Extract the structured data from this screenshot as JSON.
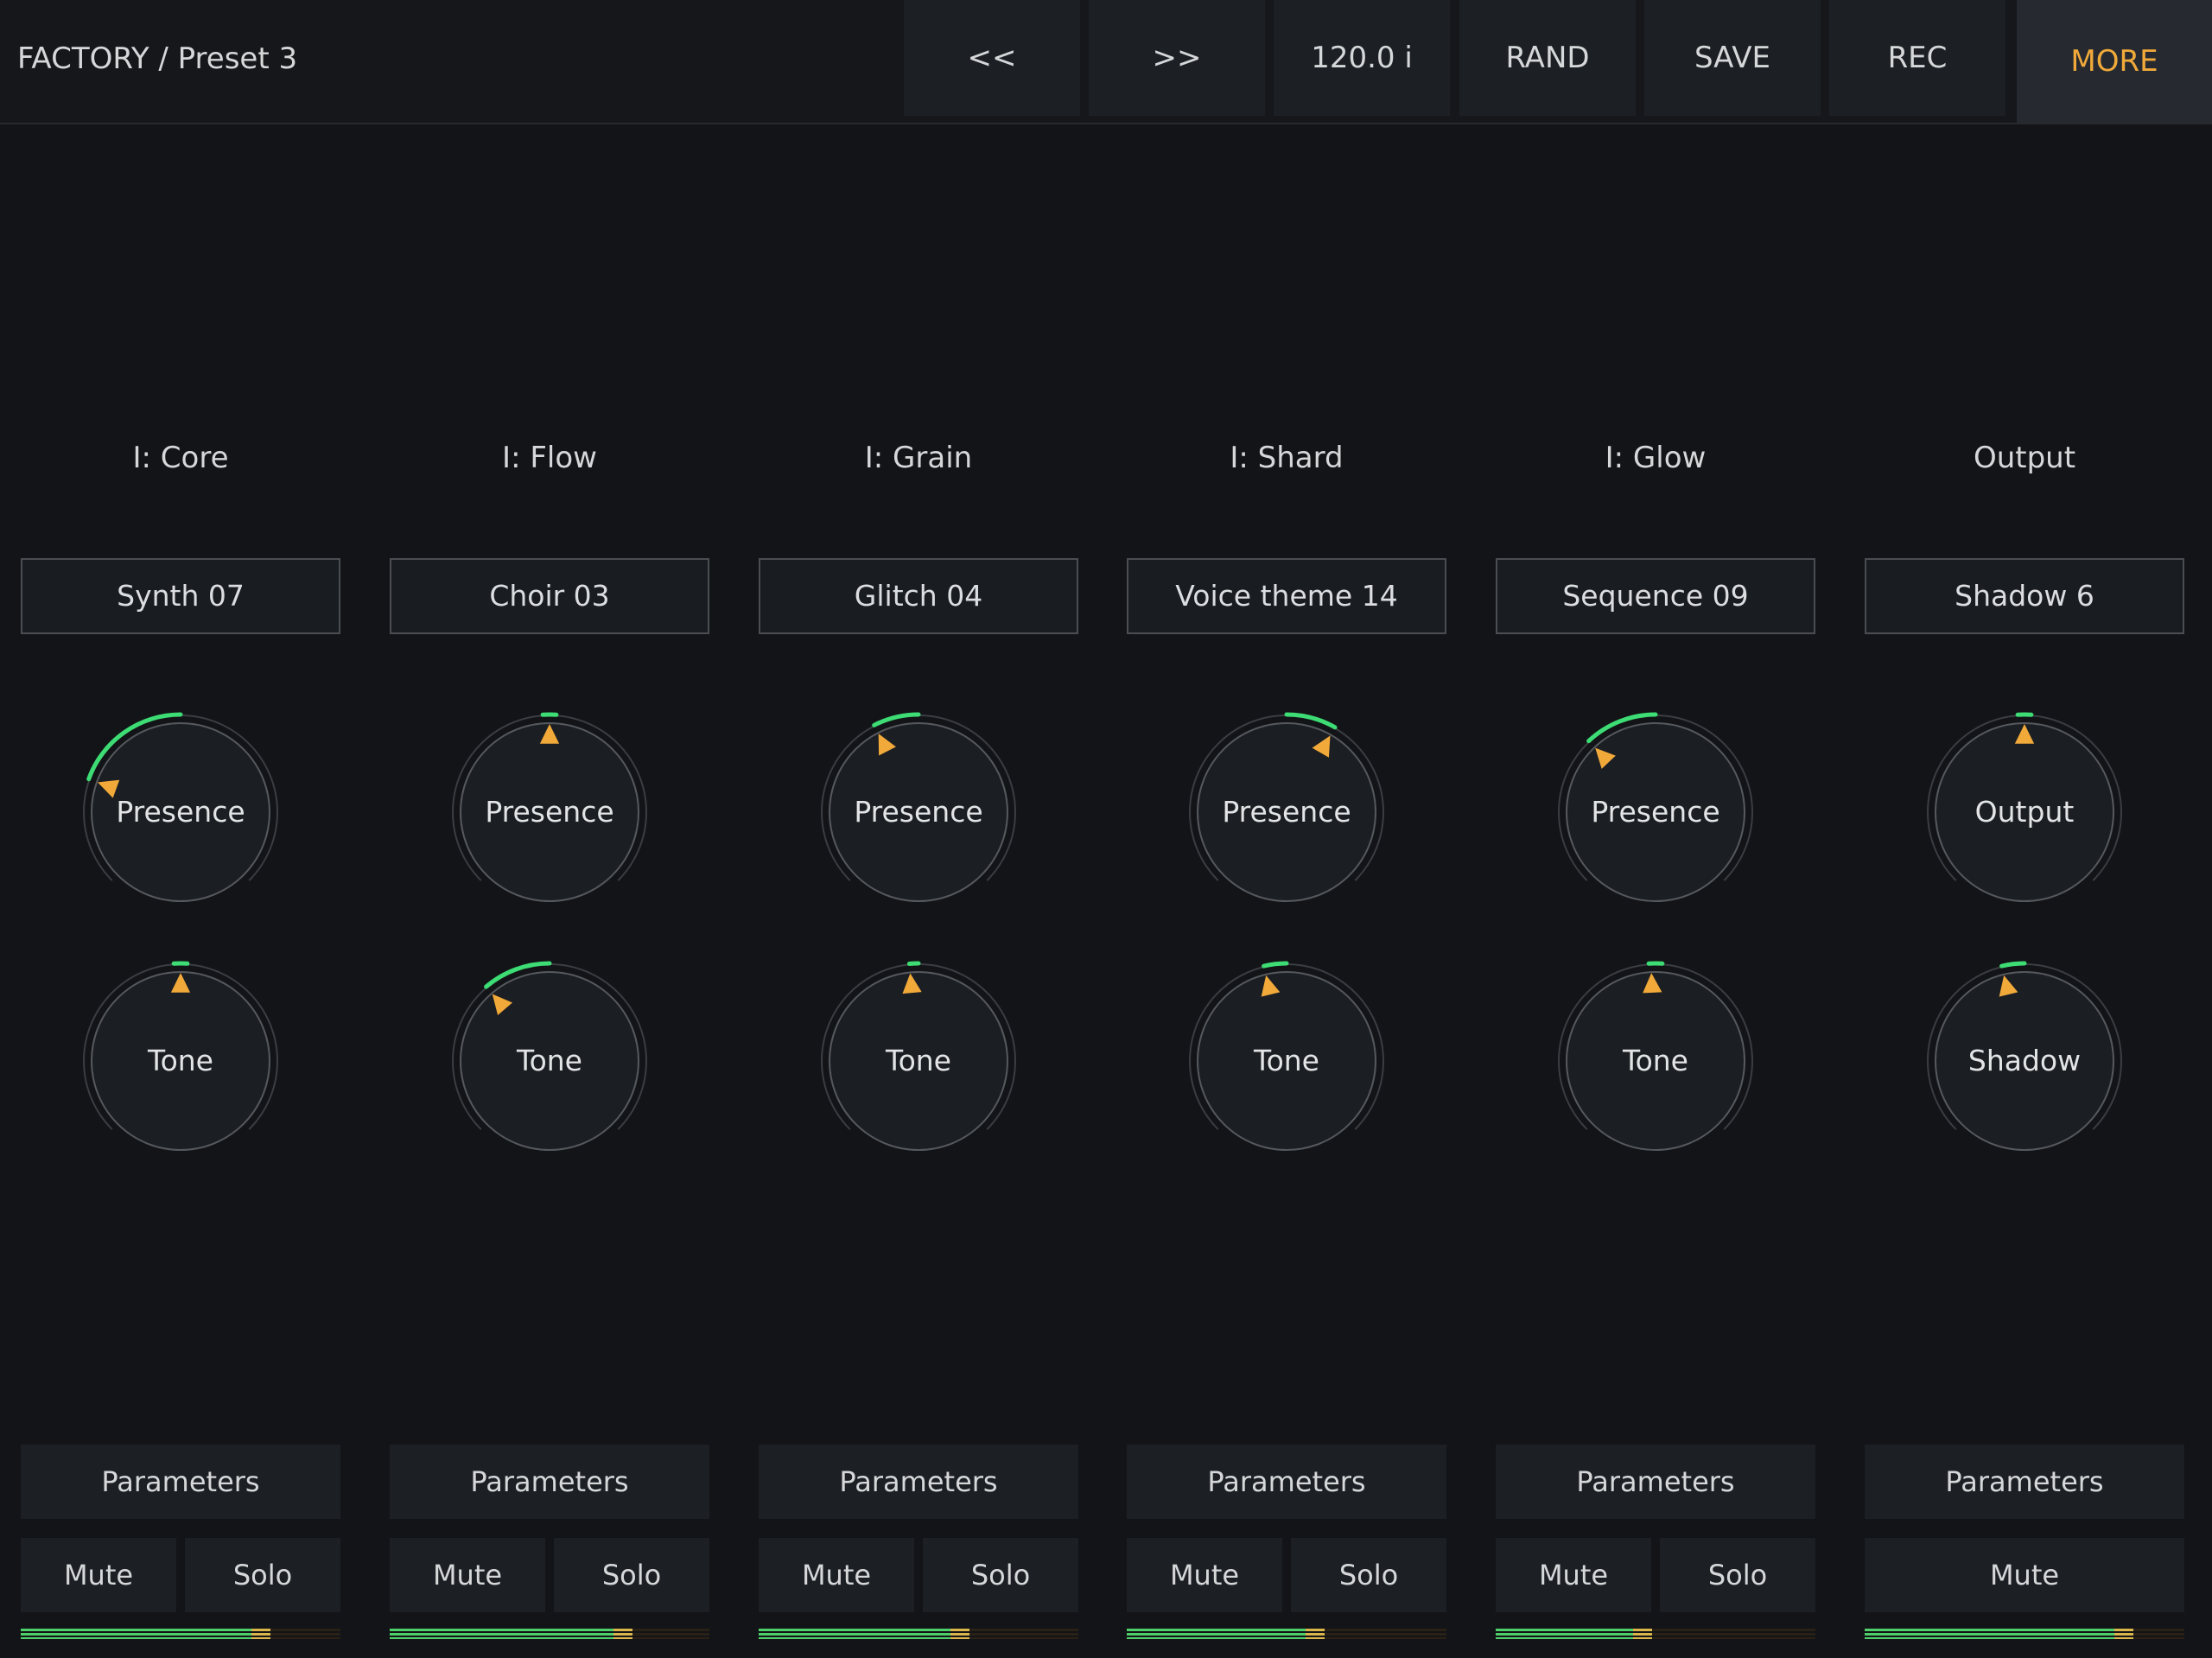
{
  "header": {
    "title": "FACTORY / Preset 3",
    "buttons": {
      "prev": "<<",
      "next": ">>",
      "tempo": "120.0 i",
      "rand": "RAND",
      "save": "SAVE",
      "rec": "REC",
      "more": "MORE"
    }
  },
  "colors": {
    "background": "#121417",
    "accent": "#f1a93a",
    "arc": "#3ddc74",
    "meter": "#4fcf6a"
  },
  "channels": [
    {
      "title": "I: Core",
      "preset": "Synth 07",
      "knob_a": {
        "label": "Presence",
        "value": 0.24
      },
      "knob_b": {
        "label": "Tone",
        "value": 0.5
      },
      "params": "Parameters",
      "mute": "Mute",
      "solo": "Solo",
      "meter_level": 0.78
    },
    {
      "title": "I: Flow",
      "preset": "Choir 03",
      "knob_a": {
        "label": "Presence",
        "value": 0.5
      },
      "knob_b": {
        "label": "Tone",
        "value": 0.35
      },
      "params": "Parameters",
      "mute": "Mute",
      "solo": "Solo",
      "meter_level": 0.76
    },
    {
      "title": "I: Grain",
      "preset": "Glitch 04",
      "knob_a": {
        "label": "Presence",
        "value": 0.4
      },
      "knob_b": {
        "label": "Tone",
        "value": 0.48
      },
      "params": "Parameters",
      "mute": "Mute",
      "solo": "Solo",
      "meter_level": 0.66
    },
    {
      "title": "I: Shard",
      "preset": "Voice theme 14",
      "knob_a": {
        "label": "Presence",
        "value": 0.61
      },
      "knob_b": {
        "label": "Tone",
        "value": 0.45
      },
      "params": "Parameters",
      "mute": "Mute",
      "solo": "Solo",
      "meter_level": 0.62
    },
    {
      "title": "I: Glow",
      "preset": "Sequence 09",
      "knob_a": {
        "label": "Presence",
        "value": 0.34
      },
      "knob_b": {
        "label": "Tone",
        "value": 0.49
      },
      "params": "Parameters",
      "mute": "Mute",
      "solo": "Solo",
      "meter_level": 0.49
    },
    {
      "title": "Output",
      "preset": "Shadow 6",
      "knob_a": {
        "label": "Output",
        "value": 0.5
      },
      "knob_b": {
        "label": "Shadow",
        "value": 0.45
      },
      "params": "Parameters",
      "mute": "Mute",
      "solo": null,
      "meter_level": 0.84
    }
  ]
}
